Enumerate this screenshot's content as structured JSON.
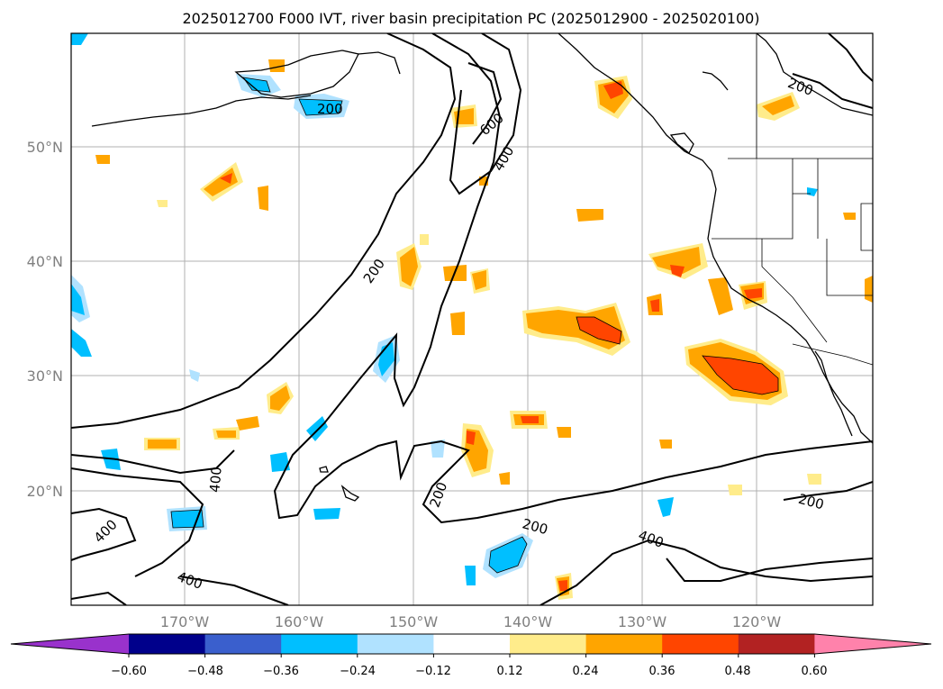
{
  "title": "2025012700 F000 IVT, river basin precipitation PC (2025012900 - 2025020100)",
  "lat_labels": [
    "50°N",
    "40°N",
    "30°N",
    "20°N"
  ],
  "lon_labels": [
    "170°W",
    "160°W",
    "150°W",
    "140°W",
    "130°W",
    "120°W"
  ],
  "colorbar": {
    "ticks": [
      "−0.60",
      "−0.48",
      "−0.36",
      "−0.24",
      "−0.12",
      "0.12",
      "0.24",
      "0.36",
      "0.48",
      "0.60"
    ],
    "colors": [
      "#9932cc",
      "#00008b",
      "#3a5fcd",
      "#00bfff",
      "#b0e2ff",
      "#ffffff",
      "#ffec8b",
      "#ffa500",
      "#ff4500",
      "#b22222",
      "#ff82ab"
    ]
  },
  "contour_labels": [
    "200",
    "600",
    "400",
    "200",
    "200",
    "400",
    "400",
    "200",
    "200",
    "200",
    "400",
    "400"
  ]
}
